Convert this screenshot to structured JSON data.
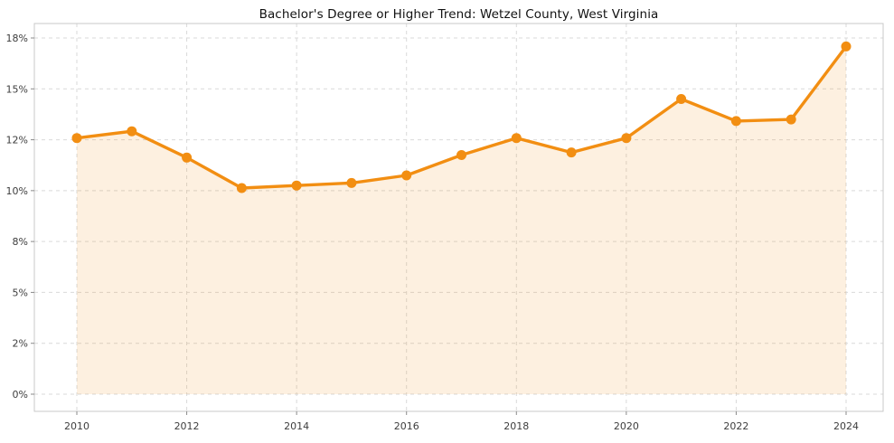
{
  "chart_data": {
    "type": "area",
    "title": "Bachelor's Degree or Higher Trend: Wetzel County, West Virginia",
    "x": [
      2010,
      2011,
      2012,
      2013,
      2014,
      2015,
      2016,
      2017,
      2018,
      2019,
      2020,
      2021,
      2022,
      2023,
      2024
    ],
    "series": [
      {
        "name": "Bachelor's Degree or Higher (%)",
        "values": [
          12.1,
          12.5,
          11.3,
          10.1,
          10.2,
          10.3,
          10.6,
          11.4,
          12.1,
          11.5,
          12.1,
          14.4,
          13.1,
          13.2,
          17.5
        ]
      }
    ],
    "xlabel": "",
    "ylabel": "",
    "ylim": [
      0,
      18
    ],
    "y_ticks": {
      "values": [
        0,
        2,
        5,
        8,
        10,
        12,
        15,
        18
      ],
      "labels": [
        "0%",
        "2%",
        "5%",
        "8%",
        "10%",
        "12%",
        "15%",
        "18%"
      ]
    },
    "x_ticks": {
      "values": [
        2010,
        2012,
        2014,
        2016,
        2018,
        2020,
        2022,
        2024
      ],
      "labels": [
        "2010",
        "2012",
        "2014",
        "2016",
        "2018",
        "2020",
        "2022",
        "2024"
      ]
    },
    "grid": true,
    "grid_style": "dashed",
    "legend_position": "none",
    "colors": {
      "line": "#f28e12",
      "marker": "#f28e12",
      "fill": "rgba(242,142,18,0.13)",
      "grid": "#d9d9d9",
      "border": "#c9c9c9",
      "tick_mark": "#8a8a8a",
      "tick_label": "#3d3d3d",
      "title": "#111111",
      "background": "#ffffff"
    }
  }
}
